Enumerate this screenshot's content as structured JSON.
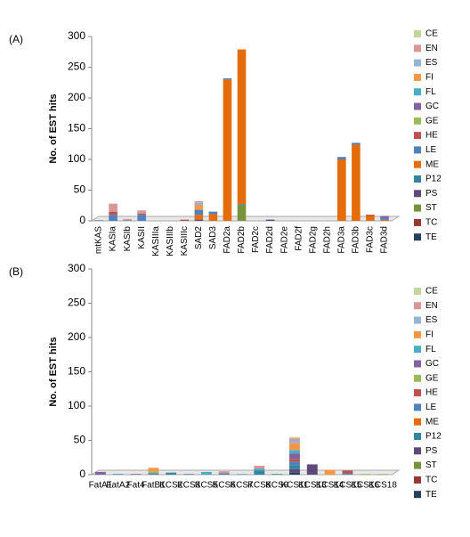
{
  "chart_data": [
    {
      "type": "bar",
      "stacked": true,
      "panel_label": "(A)",
      "y_label": "No. of EST hits",
      "categories": [
        "mtKAS",
        "KASIa",
        "KASIb",
        "KASII",
        "KASIIIa",
        "KASIIIb",
        "KASIIIc",
        "SAD2",
        "SAD3",
        "FAD2a",
        "FAD2b",
        "FAD2c",
        "FAD2d",
        "FAD2e",
        "FAD2f",
        "FAD2g",
        "FAD2h",
        "FAD3a",
        "FAD3b",
        "FAD3c",
        "FAD3d"
      ],
      "ylim": [
        0,
        300
      ],
      "yticks": [
        0,
        50,
        100,
        150,
        200,
        250,
        300
      ],
      "grid": false,
      "series": [
        {
          "name": "CE",
          "color": "#c3d69b",
          "values": [
            0,
            0,
            0,
            0,
            0,
            0,
            0,
            0,
            0,
            0,
            0,
            0,
            0,
            0,
            0,
            0,
            0,
            0,
            0,
            0,
            0
          ]
        },
        {
          "name": "EN",
          "color": "#d99694",
          "values": [
            0,
            13,
            2,
            5,
            0,
            0,
            0,
            2,
            0,
            0,
            0,
            0,
            0,
            0,
            0,
            0,
            0,
            0,
            0,
            0,
            0
          ]
        },
        {
          "name": "ES",
          "color": "#95b3d7",
          "values": [
            0,
            0,
            0,
            0,
            0,
            0,
            0,
            4,
            0,
            0,
            0,
            0,
            0,
            0,
            0,
            0,
            0,
            0,
            0,
            0,
            0
          ]
        },
        {
          "name": "FI",
          "color": "#f79646",
          "values": [
            0,
            0,
            0,
            0,
            0,
            0,
            0,
            8,
            0,
            0,
            0,
            0,
            0,
            0,
            0,
            0,
            0,
            0,
            0,
            0,
            0
          ]
        },
        {
          "name": "FL",
          "color": "#4bacc6",
          "values": [
            0,
            0,
            0,
            0,
            0,
            0,
            0,
            0,
            0,
            0,
            0,
            0,
            0,
            0,
            0,
            0,
            0,
            0,
            0,
            0,
            0
          ]
        },
        {
          "name": "GC",
          "color": "#8064a2",
          "values": [
            0,
            0,
            0,
            0,
            0,
            0,
            0,
            0,
            0,
            0,
            0,
            0,
            0,
            0,
            0,
            0,
            0,
            0,
            0,
            0,
            3
          ]
        },
        {
          "name": "GE",
          "color": "#9bbb59",
          "values": [
            0,
            0,
            0,
            0,
            0,
            0,
            0,
            0,
            0,
            0,
            0,
            0,
            0,
            0,
            0,
            0,
            0,
            0,
            0,
            0,
            0
          ]
        },
        {
          "name": "HE",
          "color": "#c0504d",
          "values": [
            0,
            5,
            0,
            2,
            0,
            0,
            2,
            0,
            0,
            0,
            0,
            0,
            0,
            0,
            0,
            0,
            0,
            0,
            0,
            2,
            0
          ]
        },
        {
          "name": "LE",
          "color": "#4f81bd",
          "values": [
            1,
            10,
            1,
            10,
            0,
            0,
            0,
            8,
            4,
            2,
            0,
            0,
            0,
            0,
            0,
            0,
            0,
            4,
            3,
            0,
            3
          ]
        },
        {
          "name": "ME",
          "color": "#e46c0a",
          "values": [
            0,
            0,
            0,
            0,
            0,
            0,
            0,
            8,
            11,
            230,
            252,
            0,
            0,
            0,
            0,
            0,
            0,
            100,
            124,
            8,
            2
          ]
        },
        {
          "name": "P12",
          "color": "#31859c",
          "values": [
            0,
            0,
            0,
            0,
            0,
            0,
            0,
            0,
            0,
            0,
            2,
            0,
            0,
            0,
            0,
            0,
            0,
            0,
            0,
            0,
            0
          ]
        },
        {
          "name": "PS",
          "color": "#5f497a",
          "values": [
            0,
            0,
            0,
            0,
            0,
            0,
            0,
            2,
            0,
            0,
            0,
            0,
            2,
            0,
            0,
            0,
            0,
            0,
            0,
            0,
            0
          ]
        },
        {
          "name": "ST",
          "color": "#77933c",
          "values": [
            0,
            0,
            0,
            0,
            0,
            0,
            0,
            0,
            0,
            0,
            25,
            0,
            0,
            0,
            0,
            0,
            0,
            0,
            0,
            0,
            0
          ]
        },
        {
          "name": "TC",
          "color": "#953735",
          "values": [
            0,
            0,
            0,
            0,
            0,
            0,
            0,
            0,
            0,
            0,
            0,
            0,
            0,
            0,
            0,
            0,
            0,
            0,
            0,
            0,
            0
          ]
        },
        {
          "name": "TE",
          "color": "#254061",
          "values": [
            0,
            0,
            0,
            0,
            0,
            0,
            0,
            0,
            0,
            0,
            0,
            0,
            0,
            0,
            0,
            0,
            0,
            0,
            0,
            0,
            0
          ]
        }
      ]
    },
    {
      "type": "bar",
      "stacked": true,
      "panel_label": "(B)",
      "y_label": "No. of EST hits",
      "categories": [
        "FatA1",
        "FatA2",
        "Fat4",
        "FatB1",
        "KCS2",
        "KCS3",
        "KCS5",
        "KCS6",
        "KCS7",
        "KCS8",
        "KCS9",
        "KCS11",
        "KCS13",
        "KCS14",
        "KCS15",
        "KCS16",
        "KCS18"
      ],
      "ylim": [
        0,
        300
      ],
      "yticks": [
        0,
        50,
        100,
        150,
        200,
        250,
        300
      ],
      "grid": false,
      "series": [
        {
          "name": "CE",
          "color": "#c3d69b",
          "values": [
            0,
            0,
            0,
            0,
            0,
            0,
            0,
            0,
            0,
            0,
            0,
            2,
            0,
            0,
            0,
            0,
            0
          ]
        },
        {
          "name": "EN",
          "color": "#d99694",
          "values": [
            0,
            0,
            0,
            0,
            0,
            0,
            0,
            3,
            0,
            4,
            0,
            3,
            0,
            0,
            0,
            0,
            0
          ]
        },
        {
          "name": "ES",
          "color": "#95b3d7",
          "values": [
            0,
            0,
            0,
            0,
            0,
            0,
            0,
            0,
            0,
            0,
            0,
            4,
            0,
            0,
            0,
            0,
            0
          ]
        },
        {
          "name": "FI",
          "color": "#f79646",
          "values": [
            0,
            0,
            0,
            5,
            0,
            0,
            0,
            0,
            0,
            0,
            0,
            10,
            0,
            7,
            0,
            0,
            0
          ]
        },
        {
          "name": "FL",
          "color": "#4bacc6",
          "values": [
            0,
            0,
            0,
            0,
            0,
            0,
            4,
            0,
            1,
            3,
            0,
            5,
            0,
            0,
            0,
            0,
            0
          ]
        },
        {
          "name": "GC",
          "color": "#8064a2",
          "values": [
            4,
            0,
            1,
            0,
            0,
            0,
            0,
            0,
            0,
            0,
            0,
            8,
            0,
            0,
            0,
            0,
            0
          ]
        },
        {
          "name": "GE",
          "color": "#9bbb59",
          "values": [
            0,
            0,
            0,
            3,
            0,
            0,
            0,
            0,
            0,
            0,
            0,
            0,
            0,
            0,
            0,
            1,
            1
          ]
        },
        {
          "name": "HE",
          "color": "#c0504d",
          "values": [
            0,
            0,
            0,
            0,
            0,
            0,
            0,
            0,
            0,
            0,
            0,
            4,
            0,
            0,
            4,
            0,
            0
          ]
        },
        {
          "name": "LE",
          "color": "#4f81bd",
          "values": [
            0,
            1,
            0,
            2,
            0,
            1,
            0,
            2,
            0,
            0,
            0,
            5,
            0,
            0,
            2,
            0,
            0
          ]
        },
        {
          "name": "ME",
          "color": "#e46c0a",
          "values": [
            0,
            0,
            0,
            0,
            0,
            0,
            0,
            0,
            0,
            0,
            0,
            0,
            0,
            0,
            0,
            0,
            0
          ]
        },
        {
          "name": "P12",
          "color": "#31859c",
          "values": [
            0,
            0,
            0,
            0,
            3,
            0,
            0,
            0,
            0,
            6,
            1,
            6,
            0,
            0,
            0,
            0,
            0
          ]
        },
        {
          "name": "PS",
          "color": "#5f497a",
          "values": [
            0,
            0,
            0,
            0,
            0,
            0,
            0,
            0,
            0,
            0,
            0,
            5,
            15,
            0,
            0,
            0,
            0
          ]
        },
        {
          "name": "ST",
          "color": "#77933c",
          "values": [
            0,
            0,
            0,
            0,
            0,
            0,
            0,
            0,
            0,
            0,
            0,
            0,
            0,
            0,
            0,
            0,
            0
          ]
        },
        {
          "name": "TC",
          "color": "#953735",
          "values": [
            0,
            0,
            0,
            0,
            0,
            0,
            0,
            0,
            0,
            0,
            0,
            0,
            0,
            0,
            0,
            0,
            0
          ]
        },
        {
          "name": "TE",
          "color": "#254061",
          "values": [
            0,
            0,
            0,
            0,
            0,
            0,
            0,
            0,
            0,
            0,
            0,
            3,
            0,
            0,
            0,
            0,
            0
          ]
        }
      ]
    }
  ]
}
